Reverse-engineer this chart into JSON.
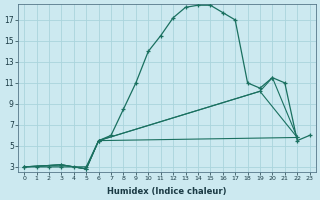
{
  "xlabel": "Humidex (Indice chaleur)",
  "bg_color": "#cce9f0",
  "grid_color": "#aad4dc",
  "line_color": "#1a7060",
  "xlim": [
    -0.5,
    23.5
  ],
  "ylim": [
    2.5,
    18.5
  ],
  "xticks": [
    0,
    1,
    2,
    3,
    4,
    5,
    6,
    7,
    8,
    9,
    10,
    11,
    12,
    13,
    14,
    15,
    16,
    17,
    18,
    19,
    20,
    21,
    22,
    23
  ],
  "yticks": [
    3,
    5,
    7,
    9,
    11,
    13,
    15,
    17
  ],
  "curve_main_x": [
    0,
    1,
    2,
    3,
    4,
    5,
    6,
    7,
    8,
    9,
    10,
    11,
    12,
    13,
    14,
    15,
    16,
    17,
    18,
    19,
    20,
    21,
    22,
    23
  ],
  "curve_main_y": [
    3,
    3,
    3,
    3,
    3,
    3,
    5.5,
    6,
    8.5,
    11,
    14,
    15.5,
    17.2,
    18.2,
    18.4,
    18.4,
    17.7,
    17.0,
    11.0,
    10.5,
    11.5,
    11.0,
    5.5,
    6.0
  ],
  "curve2_x": [
    0,
    3,
    5,
    6,
    22
  ],
  "curve2_y": [
    3,
    3.2,
    2.8,
    5.5,
    5.8
  ],
  "curve3_x": [
    0,
    3,
    5,
    6,
    19,
    22
  ],
  "curve3_y": [
    3,
    3.2,
    2.8,
    5.5,
    10.2,
    5.8
  ],
  "curve4_x": [
    0,
    3,
    5,
    6,
    19,
    20,
    22
  ],
  "curve4_y": [
    3,
    3.2,
    2.8,
    5.5,
    10.2,
    11.5,
    5.8
  ]
}
